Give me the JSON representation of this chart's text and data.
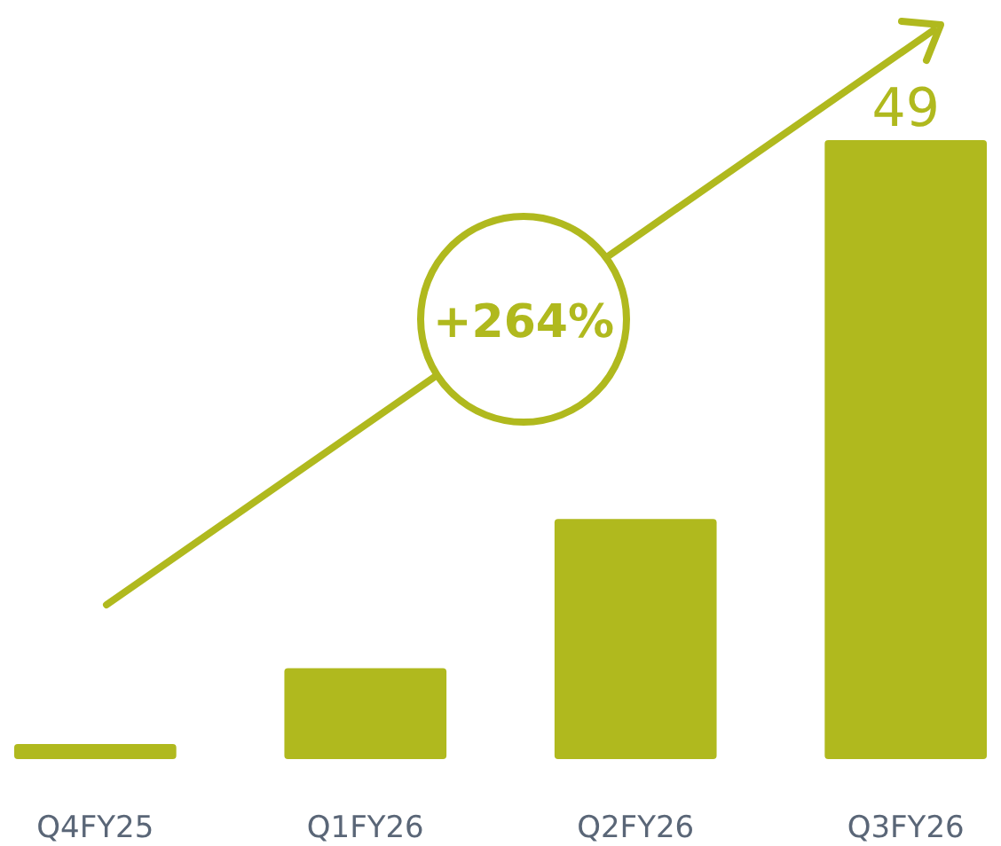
{
  "chart_data": {
    "type": "bar",
    "categories": [
      "Q4FY25",
      "Q1FY26",
      "Q2FY26",
      "Q3FY26"
    ],
    "values": [
      1.2,
      7.2,
      19.0,
      49
    ],
    "value_labels": [
      null,
      null,
      null,
      "49"
    ],
    "color": "#b0b91e",
    "annotations": [
      "+264%"
    ]
  }
}
